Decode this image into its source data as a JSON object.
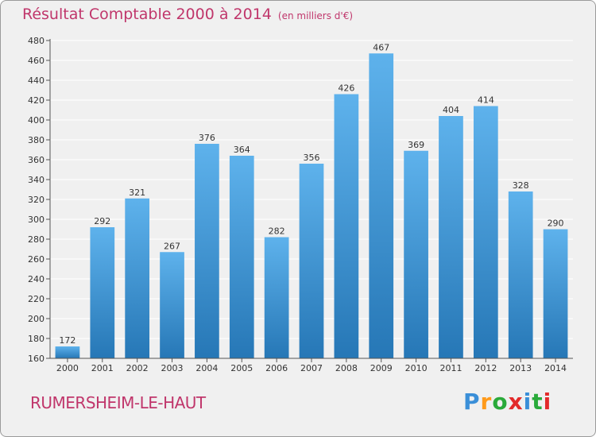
{
  "header": {
    "title": "Résultat Comptable 2000 à 2014",
    "unit": "(en milliers d'€)"
  },
  "footer": {
    "commune": "RUMERSHEIM-LE-HAUT",
    "logo": "Proxiti"
  },
  "colors": {
    "title": "#c0366b",
    "bar_top": "#5eb2ec",
    "bar_bottom": "#2677b6",
    "grid": "#ffffff",
    "background": "#f0f0f0"
  },
  "chart_data": {
    "type": "bar",
    "title": "Résultat Comptable 2000 à 2014",
    "subtitle": "(en milliers d'€)",
    "xlabel": "",
    "ylabel": "",
    "categories": [
      "2000",
      "2001",
      "2002",
      "2003",
      "2004",
      "2005",
      "2006",
      "2007",
      "2008",
      "2009",
      "2010",
      "2011",
      "2012",
      "2013",
      "2014"
    ],
    "values": [
      172,
      292,
      321,
      267,
      376,
      364,
      282,
      356,
      426,
      467,
      369,
      404,
      414,
      328,
      290
    ],
    "ylim": [
      160,
      480
    ],
    "yticks": [
      160,
      180,
      200,
      220,
      240,
      260,
      280,
      300,
      320,
      340,
      360,
      380,
      400,
      420,
      440,
      460,
      480
    ],
    "grid": true,
    "data_labels": true
  }
}
